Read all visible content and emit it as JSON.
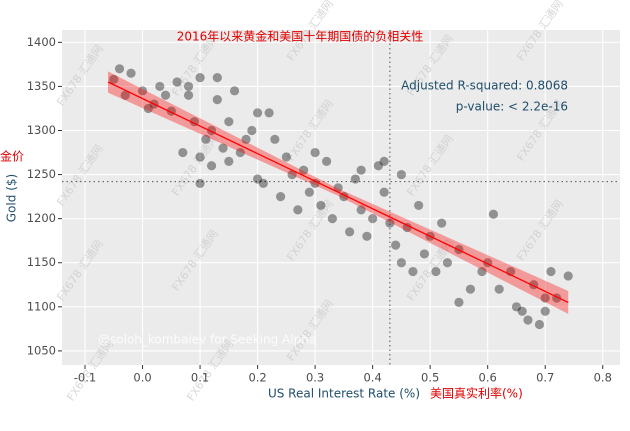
{
  "chart_data": {
    "type": "scatter",
    "title": "2016年以来黄金和美国十年期国债的负相关性",
    "x_label": "US Real Interest Rate (%)",
    "x_label_cn": "美国真实利率(%)",
    "y_label": "Gold ($)",
    "y_label_cn": "金价",
    "annotations": [
      "Adjusted R-squared: 0.8068",
      "p-value: < 2.2e-16"
    ],
    "credit": "@soloh_kombaiev for Seeking Alpha",
    "watermark": "FX678 汇通网",
    "color": "#000000",
    "x": [
      -0.05,
      -0.04,
      -0.03,
      -0.02,
      0.0,
      0.01,
      0.02,
      0.03,
      0.04,
      0.05,
      0.06,
      0.07,
      0.08,
      0.09,
      0.1,
      0.1,
      0.11,
      0.12,
      0.12,
      0.13,
      0.14,
      0.15,
      0.15,
      0.16,
      0.17,
      0.18,
      0.19,
      0.2,
      0.21,
      0.22,
      0.23,
      0.24,
      0.25,
      0.26,
      0.27,
      0.28,
      0.29,
      0.3,
      0.31,
      0.32,
      0.33,
      0.34,
      0.35,
      0.36,
      0.37,
      0.38,
      0.39,
      0.4,
      0.41,
      0.42,
      0.43,
      0.44,
      0.45,
      0.46,
      0.47,
      0.48,
      0.49,
      0.5,
      0.51,
      0.52,
      0.53,
      0.55,
      0.57,
      0.59,
      0.6,
      0.61,
      0.62,
      0.64,
      0.65,
      0.66,
      0.67,
      0.68,
      0.69,
      0.7,
      0.71,
      0.72,
      0.74,
      0.08,
      0.1,
      0.13,
      0.2,
      0.3,
      0.38,
      0.42,
      0.45,
      0.55,
      0.7
    ],
    "values": [
      1358,
      1370,
      1340,
      1365,
      1345,
      1325,
      1330,
      1350,
      1340,
      1322,
      1355,
      1275,
      1340,
      1310,
      1270,
      1360,
      1290,
      1300,
      1260,
      1335,
      1280,
      1310,
      1265,
      1345,
      1275,
      1290,
      1300,
      1245,
      1240,
      1320,
      1290,
      1225,
      1270,
      1250,
      1210,
      1255,
      1230,
      1240,
      1215,
      1265,
      1200,
      1235,
      1225,
      1185,
      1245,
      1210,
      1180,
      1200,
      1260,
      1230,
      1195,
      1170,
      1250,
      1190,
      1140,
      1215,
      1160,
      1180,
      1140,
      1195,
      1150,
      1165,
      1120,
      1140,
      1150,
      1205,
      1120,
      1140,
      1100,
      1095,
      1085,
      1125,
      1080,
      1095,
      1140,
      1110,
      1135,
      1350,
      1240,
      1360,
      1320,
      1275,
      1255,
      1265,
      1150,
      1105,
      1110
    ],
    "fit": {
      "color": "#ff0000",
      "x": [
        -0.06,
        0.34,
        0.74
      ],
      "y": [
        1355,
        1230,
        1105
      ],
      "lower": [
        1343,
        1226,
        1092
      ],
      "upper": [
        1367,
        1234,
        1118
      ]
    },
    "ref_x": 0.43,
    "ref_y": 1242,
    "xlim": [
      -0.14,
      0.83
    ],
    "ylim": [
      1034,
      1414
    ],
    "xticks": [
      -0.1,
      {
        "value": 0,
        "label": "0.0"
      },
      0.1,
      0.2,
      0.3,
      0.4,
      0.5,
      0.6,
      0.7,
      0.8
    ],
    "yticks": [
      1050,
      1100,
      1150,
      1200,
      1250,
      1300,
      1350,
      1400
    ],
    "grid": true
  }
}
